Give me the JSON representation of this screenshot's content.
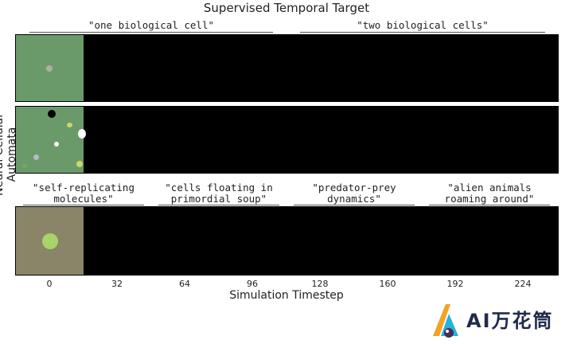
{
  "title": "Supervised Temporal Target",
  "ylabel": "Neural Cellular Automata",
  "xlabel": "Simulation Timestep",
  "xticks": [
    "0",
    "32",
    "64",
    "96",
    "128",
    "160",
    "192",
    "224"
  ],
  "rows": [
    {
      "captions": [
        "\"one biological cell\"",
        "\"two biological cells\""
      ]
    },
    {
      "captions": []
    },
    {
      "captions": [
        "\"self-replicating molecules\"",
        "\"cells floating in primordial soup\"",
        "\"predator-prey dynamics\"",
        "\"alien animals roaming around\""
      ]
    }
  ],
  "colors": {
    "frame_green": "#6a9a6a",
    "frame_tan": "#8a8469",
    "strip": "#000000"
  },
  "logo": {
    "text": "AI万花筒"
  }
}
